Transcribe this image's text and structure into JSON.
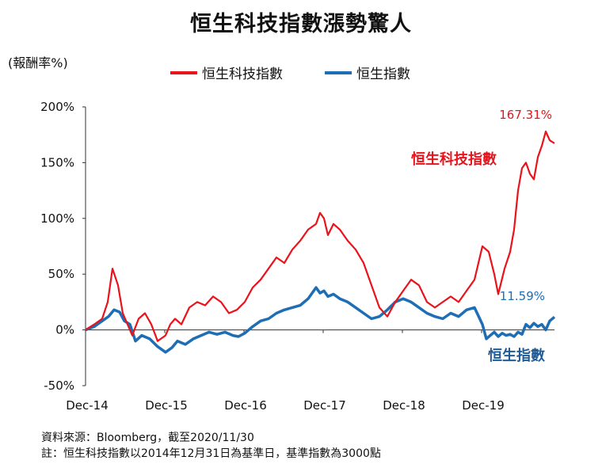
{
  "title": "恒生科技指數漲勢驚人",
  "ylabel": "(報酬率%)",
  "colors": {
    "hstech": "#e8131b",
    "hsi": "#1d6eb4",
    "axis": "#333333",
    "label_hsi": "#1f5b97"
  },
  "legend": [
    {
      "label": "恒生科技指數",
      "color": "#e8131b"
    },
    {
      "label": "恒生指數",
      "color": "#1d6eb4"
    }
  ],
  "notes": {
    "source": "資料來源：Bloomberg，截至2020/11/30",
    "footnote": "註：恒生科技指數以2014年12月31日為基準日，基準指數為3000點"
  },
  "chart_data": {
    "type": "line",
    "title": "恒生科技指數漲勢驚人",
    "xlabel": "",
    "ylabel": "(報酬率%)",
    "x_tick_labels": [
      "Dec-14",
      "Dec-15",
      "Dec-16",
      "Dec-17",
      "Dec-18",
      "Dec-19"
    ],
    "y_tick_labels": [
      "-50%",
      "0%",
      "50%",
      "100%",
      "150%",
      "200%"
    ],
    "y_ticks": [
      -50,
      0,
      50,
      100,
      150,
      200
    ],
    "ylim": [
      -50,
      200
    ],
    "xlim": [
      2014.99,
      2020.91
    ],
    "grid": false,
    "legend_position": "top",
    "series": [
      {
        "name": "恒生科技指數",
        "color": "#e8131b",
        "end_label": "167.31%",
        "series_label": "恒生科技指數",
        "x": [
          2014.99,
          2015.1,
          2015.2,
          2015.27,
          2015.33,
          2015.4,
          2015.46,
          2015.52,
          2015.58,
          2015.66,
          2015.74,
          2015.82,
          2015.9,
          2016.0,
          2016.06,
          2016.12,
          2016.2,
          2016.3,
          2016.4,
          2016.5,
          2016.6,
          2016.7,
          2016.8,
          2016.9,
          2017.0,
          2017.1,
          2017.2,
          2017.3,
          2017.4,
          2017.5,
          2017.6,
          2017.7,
          2017.8,
          2017.9,
          2017.95,
          2018.0,
          2018.05,
          2018.12,
          2018.2,
          2018.3,
          2018.4,
          2018.5,
          2018.6,
          2018.7,
          2018.8,
          2018.9,
          2019.0,
          2019.1,
          2019.2,
          2019.3,
          2019.4,
          2019.5,
          2019.6,
          2019.7,
          2019.8,
          2019.9,
          2019.95,
          2020.0,
          2020.08,
          2020.15,
          2020.2,
          2020.28,
          2020.35,
          2020.4,
          2020.45,
          2020.5,
          2020.55,
          2020.6,
          2020.65,
          2020.7,
          2020.75,
          2020.8,
          2020.85,
          2020.91
        ],
        "values": [
          0,
          5,
          10,
          25,
          55,
          40,
          15,
          5,
          -5,
          10,
          15,
          5,
          -10,
          -5,
          5,
          10,
          5,
          20,
          25,
          22,
          30,
          25,
          15,
          18,
          25,
          38,
          45,
          55,
          65,
          60,
          72,
          80,
          90,
          95,
          105,
          100,
          85,
          95,
          90,
          80,
          72,
          60,
          40,
          20,
          12,
          25,
          35,
          45,
          40,
          25,
          20,
          25,
          30,
          25,
          35,
          45,
          60,
          75,
          70,
          50,
          32,
          55,
          70,
          90,
          125,
          145,
          150,
          140,
          135,
          155,
          165,
          178,
          170,
          167.31
        ]
      },
      {
        "name": "恒生指數",
        "color": "#1d6eb4",
        "end_label": "11.59%",
        "series_label": "恒生指數",
        "x": [
          2014.99,
          2015.1,
          2015.2,
          2015.28,
          2015.35,
          2015.42,
          2015.48,
          2015.55,
          2015.62,
          2015.7,
          2015.8,
          2015.9,
          2016.0,
          2016.08,
          2016.15,
          2016.25,
          2016.35,
          2016.45,
          2016.55,
          2016.65,
          2016.75,
          2016.85,
          2016.92,
          2017.0,
          2017.1,
          2017.2,
          2017.3,
          2017.4,
          2017.5,
          2017.6,
          2017.7,
          2017.8,
          2017.9,
          2017.95,
          2018.0,
          2018.05,
          2018.12,
          2018.2,
          2018.3,
          2018.4,
          2018.5,
          2018.6,
          2018.7,
          2018.8,
          2018.9,
          2019.0,
          2019.1,
          2019.2,
          2019.3,
          2019.4,
          2019.5,
          2019.6,
          2019.7,
          2019.8,
          2019.9,
          2020.0,
          2020.05,
          2020.1,
          2020.15,
          2020.2,
          2020.25,
          2020.3,
          2020.35,
          2020.4,
          2020.45,
          2020.5,
          2020.55,
          2020.6,
          2020.65,
          2020.7,
          2020.75,
          2020.8,
          2020.85,
          2020.91
        ],
        "values": [
          0,
          3,
          8,
          12,
          18,
          16,
          8,
          5,
          -10,
          -5,
          -8,
          -15,
          -20,
          -16,
          -10,
          -13,
          -8,
          -5,
          -2,
          -4,
          -2,
          -5,
          -6,
          -3,
          3,
          8,
          10,
          15,
          18,
          20,
          22,
          28,
          38,
          33,
          35,
          30,
          32,
          28,
          25,
          20,
          15,
          10,
          12,
          18,
          25,
          28,
          25,
          20,
          15,
          12,
          10,
          15,
          12,
          18,
          20,
          5,
          -8,
          -5,
          -2,
          -6,
          -3,
          -5,
          -4,
          -6,
          -2,
          -4,
          5,
          2,
          6,
          3,
          5,
          0,
          8,
          11.59
        ]
      }
    ]
  }
}
